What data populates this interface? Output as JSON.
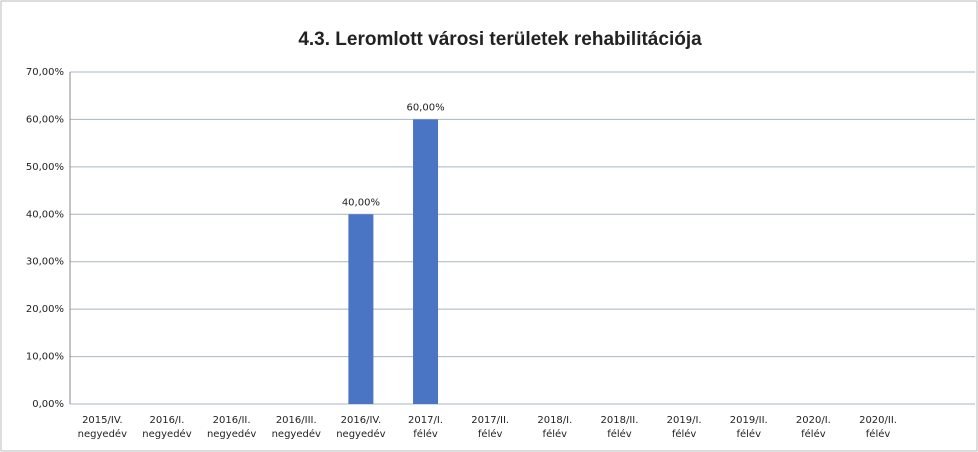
{
  "chart_data": {
    "type": "bar",
    "title": "4.3. Leromlott városi területek rehabilitációja",
    "categories": [
      [
        "2015/IV.",
        "negyedév"
      ],
      [
        "2016/I.",
        "negyedév"
      ],
      [
        "2016/II.",
        "negyedév"
      ],
      [
        "2016/III.",
        "negyedév"
      ],
      [
        "2016/IV.",
        "negyedév"
      ],
      [
        "2017/I.",
        "félév"
      ],
      [
        "2017/II.",
        "félév"
      ],
      [
        "2018/I.",
        "félév"
      ],
      [
        "2018/II.",
        "félév"
      ],
      [
        "2019/I.",
        "félév"
      ],
      [
        "2019/II.",
        "félév"
      ],
      [
        "2020/I.",
        "félév"
      ],
      [
        "2020/II.",
        "félév"
      ],
      null
    ],
    "values": [
      null,
      null,
      null,
      null,
      40,
      60,
      null,
      null,
      null,
      null,
      null,
      null,
      null,
      null
    ],
    "value_labels": [
      null,
      null,
      null,
      null,
      "40,00%",
      "60,00%",
      null,
      null,
      null,
      null,
      null,
      null,
      null,
      null
    ],
    "color": "#4a74c4",
    "ylim": [
      0,
      70
    ],
    "yticks": [
      {
        "value": 0,
        "label": "0,00%"
      },
      {
        "value": 10,
        "label": "10,00%"
      },
      {
        "value": 20,
        "label": "20,00%"
      },
      {
        "value": 30,
        "label": "30,00%"
      },
      {
        "value": 40,
        "label": "40,00%"
      },
      {
        "value": 50,
        "label": "50,00%"
      },
      {
        "value": 60,
        "label": "60,00%"
      },
      {
        "value": 70,
        "label": "70,00%"
      }
    ],
    "grid": true
  }
}
